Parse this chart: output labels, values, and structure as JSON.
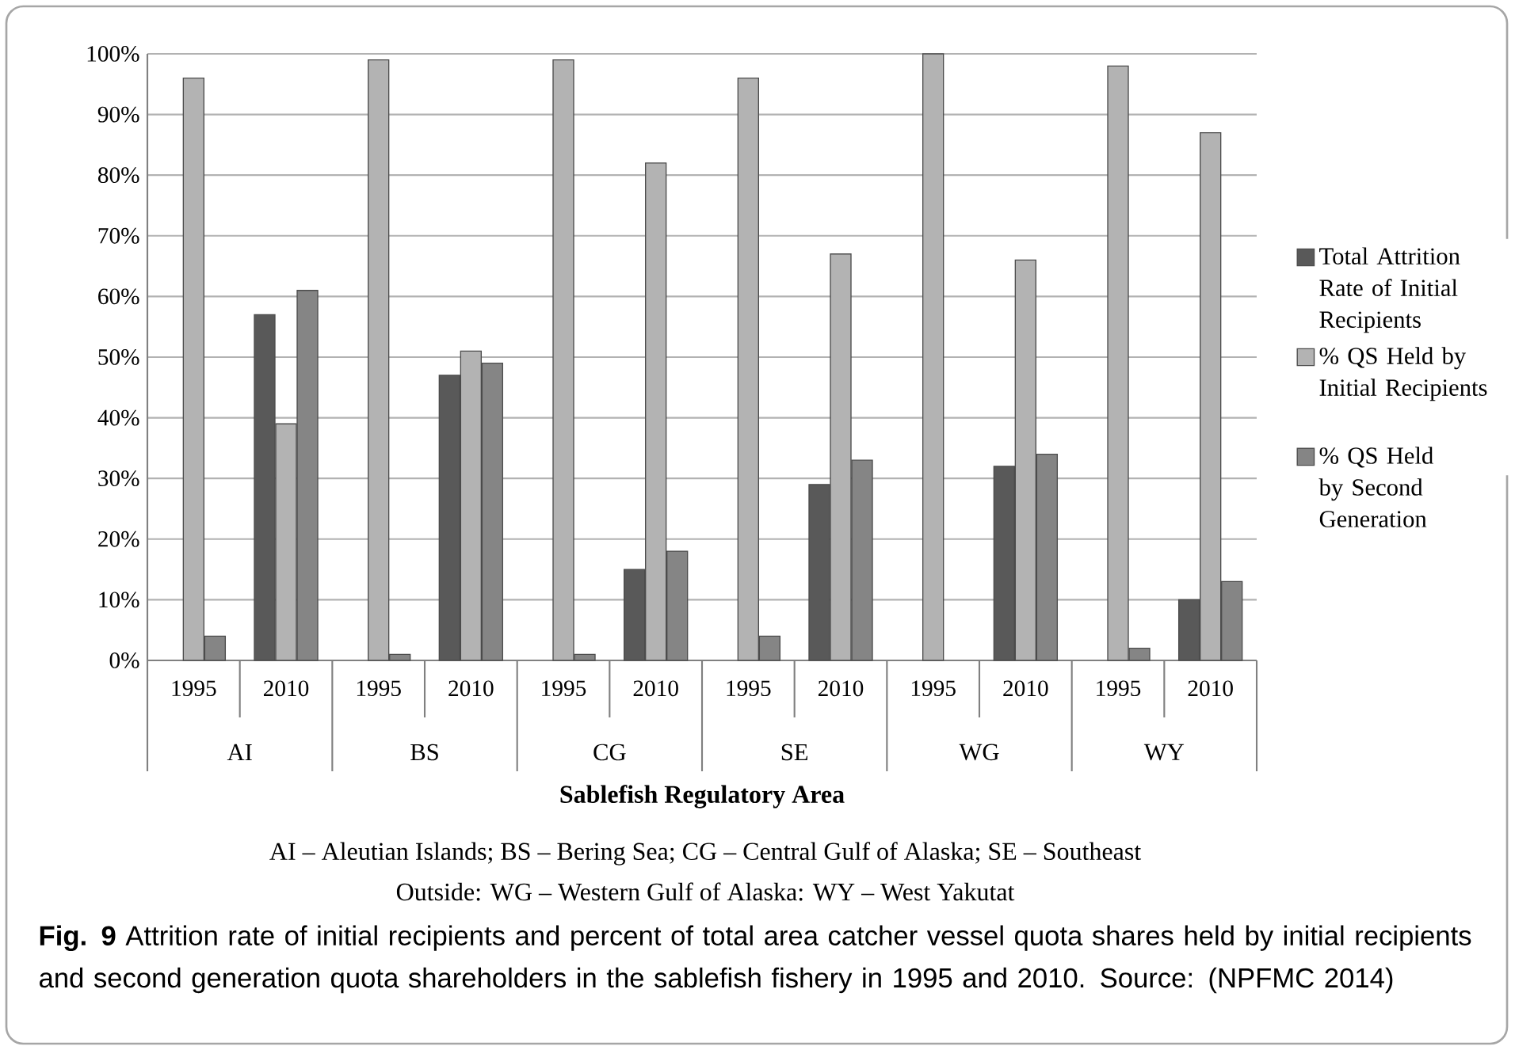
{
  "chart_data": {
    "type": "bar",
    "xlabel": "Sablefish Regulatory Area",
    "categories": [
      "1995",
      "2010",
      "1995",
      "2010",
      "1995",
      "2010",
      "1995",
      "2010",
      "1995",
      "2010",
      "1995",
      "2010"
    ],
    "series": [
      {
        "name": "Total Attrition Rate of Initial Recipients",
        "color": "#595959",
        "values": [
          null,
          57,
          null,
          47,
          null,
          15,
          null,
          29,
          null,
          32,
          null,
          10
        ]
      },
      {
        "name": "% QS Held by Initial Recipients",
        "color": "#b3b3b3",
        "values": [
          96,
          39,
          99,
          51,
          99,
          82,
          96,
          67,
          100,
          66,
          98,
          87
        ]
      },
      {
        "name": "% QS Held by Second Generation",
        "color": "#858585",
        "values": [
          4,
          61,
          1,
          49,
          1,
          18,
          4,
          33,
          null,
          34,
          2,
          13
        ]
      }
    ],
    "ylim": [
      0,
      100
    ],
    "yticks": [
      {
        "value": 0,
        "label": "0%"
      },
      {
        "value": 10,
        "label": "10%"
      },
      {
        "value": 20,
        "label": "20%"
      },
      {
        "value": 30,
        "label": "30%"
      },
      {
        "value": 40,
        "label": "40%"
      },
      {
        "value": 50,
        "label": "50%"
      },
      {
        "value": 60,
        "label": "60%"
      },
      {
        "value": 70,
        "label": "70%"
      },
      {
        "value": 80,
        "label": "80%"
      },
      {
        "value": 90,
        "label": "90%"
      },
      {
        "value": 100,
        "label": "100%"
      }
    ],
    "grid": "y",
    "legend": "right",
    "annotations": [
      "AI",
      "BS",
      "CG",
      "SE",
      "WG",
      "WY",
      "AI – Aleutian Islands; BS – Bering Sea; CG – Central Gulf of Alaska; SE – Southeast",
      "Outside: WG – Western Gulf of Alaska: WY – West Yakutat",
      "**Fig. 9** Attrition rate of initial recipients and percent of total area catcher vessel quota shares held by initial recipients and second generation quota shareholders in the sablefish fishery in 1995 and 2010. Source: (NPFMC 2014)"
    ]
  }
}
